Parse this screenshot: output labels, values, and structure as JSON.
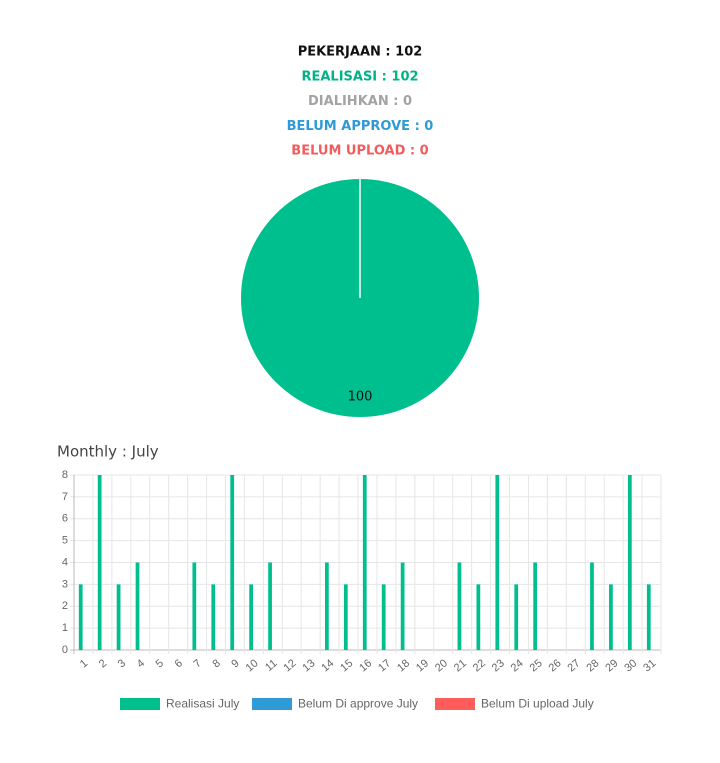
{
  "summary": [
    {
      "text": "PEKERJAAN : 102",
      "color": "#111111"
    },
    {
      "text": "REALISASI : 102",
      "color": "#00b386"
    },
    {
      "text": "DIALIHKAN : 0",
      "color": "#a3a3a3"
    },
    {
      "text": "BELUM APPROVE : 0",
      "color": "#2e9bd6"
    },
    {
      "text": "BELUM UPLOAD : 0",
      "color": "#f25c5c"
    }
  ],
  "chart_data": [
    {
      "type": "pie",
      "values": [
        100
      ],
      "colors": [
        "#00bf8f"
      ]
    },
    {
      "type": "bar",
      "title": "Monthly : July",
      "categories": [
        "1",
        "2",
        "3",
        "4",
        "5",
        "6",
        "7",
        "8",
        "9",
        "10",
        "11",
        "12",
        "13",
        "14",
        "15",
        "16",
        "17",
        "18",
        "19",
        "20",
        "21",
        "22",
        "23",
        "24",
        "25",
        "26",
        "27",
        "28",
        "29",
        "30",
        "31"
      ],
      "series": [
        {
          "name": "Realisasi July",
          "color": "#00bf8f",
          "values": [
            3,
            8,
            3,
            4,
            0,
            0,
            4,
            3,
            8,
            3,
            4,
            0,
            0,
            4,
            3,
            8,
            3,
            4,
            0,
            0,
            4,
            3,
            8,
            3,
            4,
            0,
            0,
            4,
            3,
            8,
            3
          ]
        },
        {
          "name": "Belum Di approve July",
          "color": "#2e9bd6",
          "values": [
            0,
            0,
            0,
            0,
            0,
            0,
            0,
            0,
            0,
            0,
            0,
            0,
            0,
            0,
            0,
            0,
            0,
            0,
            0,
            0,
            0,
            0,
            0,
            0,
            0,
            0,
            0,
            0,
            0,
            0,
            0
          ]
        },
        {
          "name": "Belum Di upload July",
          "color": "#ff5c5c",
          "values": [
            0,
            0,
            0,
            0,
            0,
            0,
            0,
            0,
            0,
            0,
            0,
            0,
            0,
            0,
            0,
            0,
            0,
            0,
            0,
            0,
            0,
            0,
            0,
            0,
            0,
            0,
            0,
            0,
            0,
            0,
            0
          ]
        }
      ],
      "ylim": [
        0,
        8
      ],
      "yticks": [
        0,
        1,
        2,
        3,
        4,
        5,
        6,
        7,
        8
      ],
      "grid": true,
      "legend": "bottom"
    }
  ]
}
